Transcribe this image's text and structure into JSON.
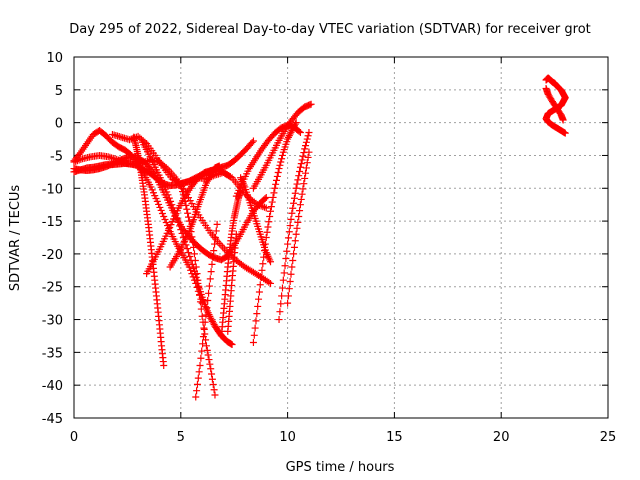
{
  "chart_data": {
    "type": "scatter",
    "title": "Day 295 of 2022, Sidereal Day-to-day VTEC variation (SDTVAR) for receiver grot",
    "xlabel": "GPS time / hours",
    "ylabel": "SDTVAR / TECUs",
    "xlim": [
      0,
      25
    ],
    "ylim": [
      -45,
      10
    ],
    "xticks": [
      "0",
      "5",
      "10",
      "15",
      "20",
      "25"
    ],
    "yticks": [
      "10",
      "5",
      "0",
      "-5",
      "-10",
      "-15",
      "-20",
      "-25",
      "-30",
      "-35",
      "-40",
      "-45"
    ],
    "grid": true,
    "marker": "+",
    "series_color": "#ff0000",
    "series": [
      {
        "x": [
          0.0,
          0.3,
          0.6,
          0.9,
          1.2,
          1.5,
          1.8,
          2.1,
          2.4,
          2.7,
          3.0,
          3.3,
          3.6,
          3.9,
          4.2,
          4.5,
          4.8,
          5.1,
          5.4,
          5.7,
          6.0,
          6.3,
          6.6,
          6.9,
          7.2,
          7.5,
          7.8,
          8.1,
          8.4
        ],
        "y": [
          -7.5,
          -7.2,
          -6.9,
          -6.8,
          -6.6,
          -6.4,
          -6.4,
          -6.3,
          -6.2,
          -6.3,
          -6.6,
          -7.2,
          -7.8,
          -8.6,
          -9.3,
          -9.6,
          -9.5,
          -9.2,
          -8.9,
          -8.4,
          -7.9,
          -7.5,
          -7.1,
          -6.8,
          -6.5,
          -5.8,
          -4.9,
          -3.9,
          -2.8
        ]
      },
      {
        "x": [
          0.0,
          0.3,
          0.6,
          0.9,
          1.2,
          1.5,
          1.8,
          2.1,
          2.4,
          2.7,
          3.0,
          3.3,
          3.6,
          3.9,
          4.2,
          4.5,
          4.8,
          5.1,
          5.4,
          5.7,
          6.0,
          6.3,
          6.6,
          6.9,
          7.2,
          7.5,
          7.8,
          8.1,
          8.4,
          8.7,
          9.0
        ],
        "y": [
          -7.0,
          -7.2,
          -7.3,
          -7.2,
          -7.0,
          -6.7,
          -6.3,
          -5.8,
          -5.4,
          -5.2,
          -5.4,
          -6.0,
          -7.1,
          -8.7,
          -10.6,
          -12.6,
          -14.5,
          -16.2,
          -17.4,
          -18.5,
          -19.4,
          -20.1,
          -20.6,
          -20.9,
          -20.3,
          -18.7,
          -17.0,
          -15.2,
          -13.5,
          -12.3,
          -11.4
        ]
      },
      {
        "x": [
          0.0,
          0.3,
          0.6,
          0.9,
          1.2,
          1.5,
          1.8,
          2.1,
          2.4,
          2.7,
          3.0,
          3.3,
          3.6,
          3.9,
          4.2,
          4.5,
          4.8,
          5.1,
          5.4,
          5.7,
          6.0
        ],
        "y": [
          -5.8,
          -4.6,
          -3.2,
          -1.8,
          -1.2,
          -2.0,
          -3.0,
          -3.7,
          -4.2,
          -5.0,
          -6.5,
          -8.0,
          -9.8,
          -12.0,
          -14.3,
          -16.6,
          -18.5,
          -20.2,
          -22.0,
          -24.5,
          -27.5
        ]
      },
      {
        "x": [
          0.0,
          0.4,
          0.8,
          1.2,
          1.6,
          2.0,
          2.4,
          2.8,
          3.2,
          3.6,
          4.0,
          4.4,
          4.8,
          5.2,
          5.6,
          6.0,
          6.4,
          6.8,
          7.2,
          7.6,
          8.0,
          8.4,
          8.8,
          9.2
        ],
        "y": [
          -6.0,
          -5.5,
          -5.2,
          -5.0,
          -5.2,
          -5.6,
          -6.2,
          -6.4,
          -6.1,
          -5.7,
          -6.0,
          -7.1,
          -8.6,
          -10.5,
          -12.8,
          -14.9,
          -16.8,
          -18.4,
          -19.8,
          -21.0,
          -22.0,
          -22.8,
          -23.6,
          -24.5
        ]
      },
      {
        "x": [
          1.8,
          2.2,
          2.6,
          3.0,
          3.4,
          3.8,
          4.2,
          4.6,
          5.0,
          5.4,
          5.8,
          6.2,
          6.6,
          7.0,
          7.4,
          7.8,
          8.2,
          8.6,
          9.0
        ],
        "y": [
          -1.8,
          -2.2,
          -2.6,
          -2.1,
          -3.2,
          -5.0,
          -6.9,
          -8.6,
          -9.3,
          -9.0,
          -8.4,
          -8.6,
          -8.0,
          -7.6,
          -8.4,
          -10.0,
          -11.5,
          -12.5,
          -13.0
        ]
      },
      {
        "x": [
          2.8,
          2.9,
          3.0,
          3.1,
          3.2,
          3.3,
          3.4,
          3.5,
          3.6,
          3.7,
          3.8,
          3.9,
          4.0,
          4.1,
          4.2
        ],
        "y": [
          -2.2,
          -3.5,
          -5.0,
          -6.8,
          -8.8,
          -11.0,
          -13.5,
          -16.0,
          -18.8,
          -21.6,
          -24.6,
          -27.6,
          -30.8,
          -34.0,
          -37.0
        ]
      },
      {
        "x": [
          3.2,
          3.5,
          3.8,
          4.1,
          4.4,
          4.7,
          5.0,
          5.3,
          5.6,
          5.8,
          6.0,
          6.2,
          6.4,
          6.6,
          6.8,
          7.0,
          7.2,
          7.4
        ],
        "y": [
          -3.0,
          -4.8,
          -6.8,
          -8.8,
          -11.0,
          -13.5,
          -16.3,
          -19.2,
          -22.2,
          -24.5,
          -26.6,
          -28.4,
          -29.8,
          -31.0,
          -32.0,
          -32.8,
          -33.4,
          -33.8
        ]
      },
      {
        "x": [
          3.4,
          3.7,
          4.0,
          4.3,
          4.6,
          4.9,
          5.2,
          5.5,
          5.8,
          6.1,
          6.4,
          6.7,
          7.0,
          7.3
        ],
        "y": [
          -23.0,
          -21.2,
          -19.3,
          -17.3,
          -15.1,
          -13.0,
          -11.2,
          -9.7,
          -8.5,
          -7.6,
          -7.3,
          -7.2,
          -7.6,
          -8.2
        ]
      },
      {
        "x": [
          4.5,
          4.8,
          5.1,
          5.4,
          5.6,
          5.8,
          6.0,
          6.2,
          6.4,
          6.6,
          6.8
        ],
        "y": [
          -22.0,
          -20.4,
          -18.6,
          -16.5,
          -14.8,
          -12.8,
          -11.0,
          -9.2,
          -7.8,
          -6.9,
          -6.6
        ]
      },
      {
        "x": [
          5.0,
          5.2,
          5.4,
          5.6,
          5.8,
          6.0,
          6.2,
          6.4,
          6.6
        ],
        "y": [
          -9.5,
          -12.0,
          -15.0,
          -19.0,
          -24.0,
          -29.5,
          -34.0,
          -37.5,
          -41.5
        ]
      },
      {
        "x": [
          5.7,
          5.9,
          6.1,
          6.3,
          6.5,
          6.7
        ],
        "y": [
          -41.8,
          -37.0,
          -31.5,
          -26.0,
          -20.5,
          -15.5
        ]
      },
      {
        "x": [
          6.9,
          7.0,
          7.1,
          7.2,
          7.3,
          7.4,
          7.5,
          7.6,
          7.7,
          7.8
        ],
        "y": [
          -32.5,
          -29.0,
          -25.5,
          -22.0,
          -19.0,
          -16.5,
          -14.5,
          -13.0,
          -11.5,
          -10.5
        ]
      },
      {
        "x": [
          7.2,
          7.3,
          7.4,
          7.5,
          7.6
        ],
        "y": [
          -31.8,
          -28.0,
          -24.0,
          -20.5,
          -17.0
        ]
      },
      {
        "x": [
          7.6,
          7.9,
          8.2,
          8.5,
          8.8,
          9.1,
          9.4,
          9.7,
          10.0,
          10.3,
          10.6
        ],
        "y": [
          -11.2,
          -9.0,
          -7.0,
          -5.5,
          -4.0,
          -2.7,
          -1.6,
          -0.8,
          -0.4,
          -0.7,
          -1.5
        ]
      },
      {
        "x": [
          7.8,
          8.0,
          8.2,
          8.4,
          8.6,
          8.8,
          9.0,
          9.2
        ],
        "y": [
          -8.4,
          -9.8,
          -11.8,
          -13.8,
          -15.8,
          -17.8,
          -19.8,
          -21.2
        ]
      },
      {
        "x": [
          8.4,
          8.7,
          9.0,
          9.3,
          9.6,
          9.9,
          10.2,
          10.5,
          10.8,
          11.1
        ],
        "y": [
          -10.0,
          -8.3,
          -6.5,
          -4.6,
          -2.7,
          -1.0,
          0.4,
          1.6,
          2.4,
          2.8
        ]
      },
      {
        "x": [
          8.4,
          8.6,
          8.8,
          9.0,
          9.2,
          9.4,
          9.6,
          9.8,
          10.0,
          10.2,
          10.4
        ],
        "y": [
          -33.5,
          -28.0,
          -22.5,
          -17.5,
          -13.5,
          -10.0,
          -7.0,
          -4.5,
          -2.5,
          -1.2,
          0.0
        ]
      },
      {
        "x": [
          9.6,
          9.8,
          10.0,
          10.2,
          10.4,
          10.6,
          10.8,
          11.0
        ],
        "y": [
          -30.0,
          -24.0,
          -18.5,
          -13.8,
          -10.0,
          -6.8,
          -4.0,
          -1.5
        ]
      },
      {
        "x": [
          10.0,
          10.2,
          10.4,
          10.6,
          10.8,
          11.0
        ],
        "y": [
          -27.5,
          -22.0,
          -17.0,
          -12.5,
          -8.5,
          -4.5
        ]
      },
      {
        "x": [
          22.1,
          22.2,
          22.3,
          22.4,
          22.5,
          22.6,
          22.8,
          22.9,
          23.0,
          22.9,
          22.8,
          22.6,
          22.4,
          22.2,
          22.1,
          22.2,
          22.4,
          22.6,
          22.8,
          23.0
        ],
        "y": [
          6.5,
          6.8,
          6.5,
          6.2,
          6.0,
          5.6,
          5.0,
          4.4,
          3.8,
          3.2,
          2.6,
          2.2,
          1.8,
          1.4,
          0.6,
          0.1,
          -0.4,
          -0.8,
          -1.2,
          -1.6
        ]
      },
      {
        "x": [
          22.1,
          22.2,
          22.4,
          22.6,
          22.8,
          22.9
        ],
        "y": [
          5.2,
          4.3,
          3.2,
          2.2,
          1.2,
          0.4
        ]
      }
    ]
  }
}
